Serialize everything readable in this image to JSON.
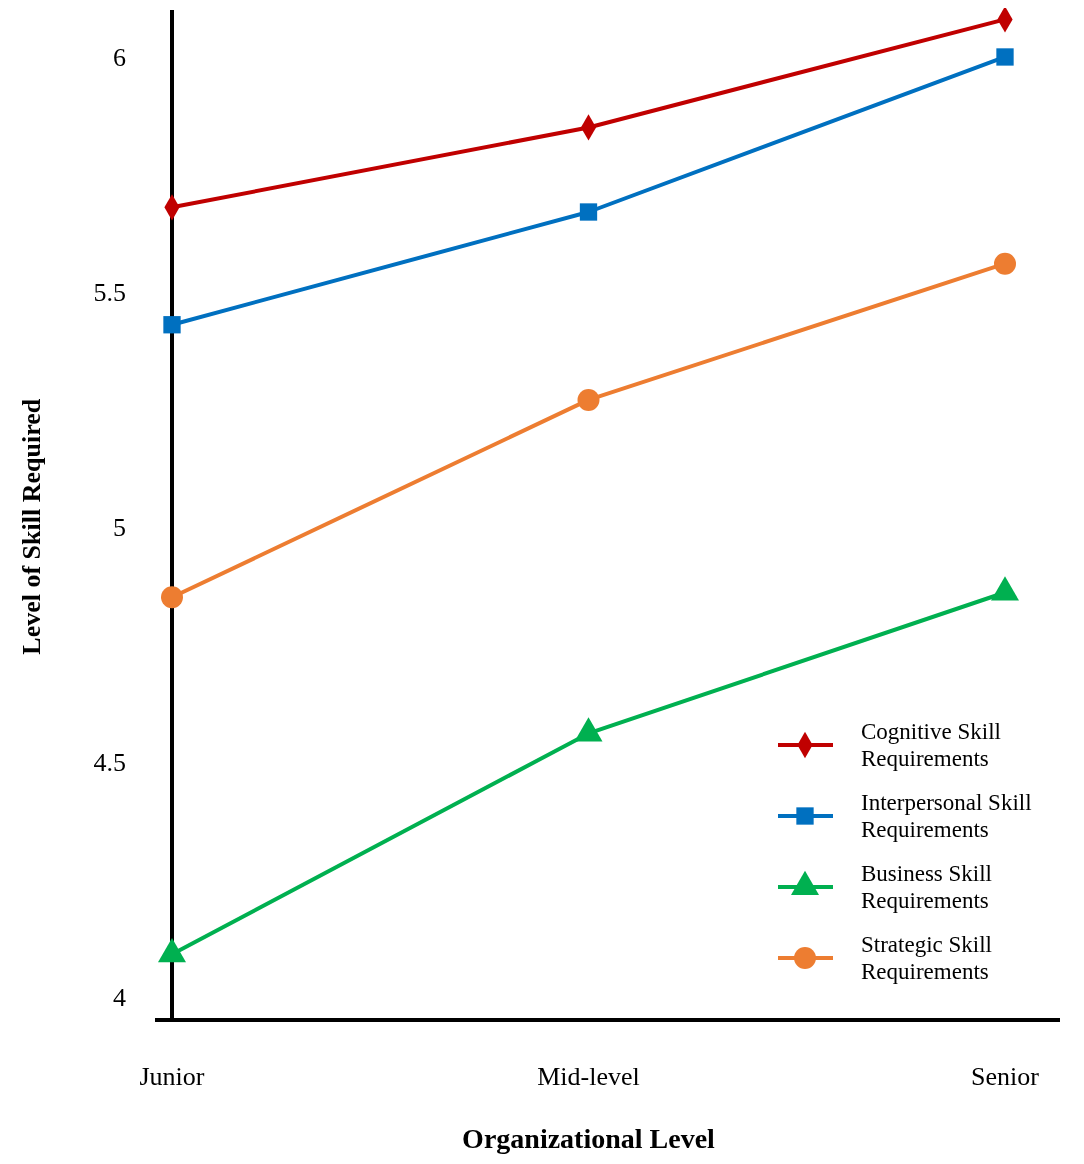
{
  "chart_data": {
    "type": "line",
    "xlabel": "Organizational Level",
    "ylabel": "Level of Skill Required",
    "categories": [
      "Junior",
      "Mid-level",
      "Senior"
    ],
    "ylim": [
      3.95,
      6.1
    ],
    "yticks": [
      4,
      4.5,
      5,
      5.5,
      6
    ],
    "grid": false,
    "legend": "bottom right",
    "line_style": "solid",
    "series": [
      {
        "name": "Cognitive Skill Requirements",
        "color": "#c00000",
        "marker": "diamond",
        "values": [
          5.68,
          5.85,
          6.08
        ]
      },
      {
        "name": "Interpersonal Skill Requirements",
        "color": "#0070c0",
        "marker": "square",
        "values": [
          5.43,
          5.67,
          6.0
        ]
      },
      {
        "name": "Business Skill Requirements",
        "color": "#00b050",
        "marker": "triangle",
        "values": [
          4.09,
          4.56,
          4.86
        ]
      },
      {
        "name": "Strategic Skill Requirements",
        "color": "#ed7d31",
        "marker": "circle",
        "values": [
          4.85,
          5.27,
          5.56
        ]
      }
    ]
  }
}
